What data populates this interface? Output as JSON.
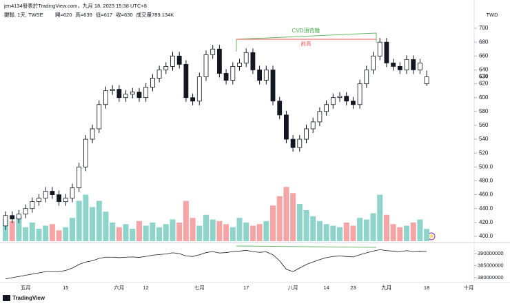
{
  "chart_data": {
    "type": "candlestick",
    "subtitle": "jen4134發表於TradingView.com，九月 18, 2023 15:38 UTC+8",
    "title": "鍵聯, 1天, TWSE",
    "ohlc_labels": [
      "開=620",
      "高=639",
      "低=617",
      "收=630",
      "成交量789.134K"
    ],
    "currency": "TWD",
    "brand": "TradingView",
    "annotations": [
      "CVD頂背離",
      "前高"
    ],
    "categories": [
      null,
      null,
      null,
      "五月",
      null,
      null,
      null,
      null,
      null,
      "15",
      null,
      null,
      null,
      null,
      null,
      null,
      null,
      "六月",
      null,
      null,
      null,
      "12",
      null,
      null,
      null,
      null,
      null,
      null,
      null,
      "七月",
      null,
      null,
      null,
      null,
      null,
      null,
      "17",
      null,
      null,
      null,
      null,
      null,
      null,
      "八月",
      null,
      null,
      null,
      null,
      "14",
      null,
      null,
      null,
      "23",
      null,
      null,
      null,
      null,
      "九月",
      null,
      null,
      null,
      null,
      null,
      "18"
    ],
    "future_label": "十月",
    "open": [
      415,
      430,
      425,
      432,
      440,
      450,
      455,
      465,
      460,
      450,
      455,
      470,
      500,
      540,
      555,
      590,
      610,
      612,
      600,
      605,
      608,
      600,
      615,
      628,
      640,
      645,
      660,
      648,
      600,
      595,
      630,
      662,
      670,
      635,
      625,
      645,
      650,
      665,
      640,
      625,
      640,
      595,
      575,
      540,
      528,
      540,
      555,
      565,
      580,
      590,
      600,
      602,
      595,
      590,
      620,
      640,
      660,
      680,
      650,
      645,
      640,
      655,
      640,
      620
    ],
    "high": [
      436,
      436,
      438,
      446,
      456,
      461,
      471,
      471,
      466,
      461,
      476,
      506,
      546,
      561,
      596,
      616,
      618,
      618,
      611,
      614,
      614,
      621,
      634,
      646,
      651,
      666,
      666,
      654,
      606,
      636,
      668,
      676,
      676,
      641,
      651,
      656,
      671,
      671,
      646,
      646,
      646,
      601,
      581,
      546,
      546,
      561,
      571,
      586,
      596,
      606,
      608,
      608,
      601,
      626,
      646,
      666,
      686,
      686,
      656,
      651,
      661,
      661,
      656,
      639
    ],
    "low": [
      409,
      419,
      419,
      426,
      434,
      444,
      449,
      454,
      444,
      444,
      449,
      464,
      494,
      534,
      549,
      584,
      604,
      594,
      594,
      599,
      594,
      594,
      609,
      622,
      634,
      639,
      642,
      594,
      589,
      589,
      624,
      656,
      629,
      619,
      619,
      639,
      644,
      634,
      619,
      619,
      589,
      569,
      534,
      522,
      522,
      534,
      549,
      559,
      574,
      584,
      594,
      589,
      584,
      584,
      614,
      634,
      654,
      644,
      639,
      634,
      634,
      634,
      634,
      617
    ],
    "close": [
      430,
      425,
      432,
      440,
      450,
      455,
      465,
      460,
      450,
      455,
      470,
      500,
      540,
      555,
      590,
      610,
      612,
      600,
      605,
      608,
      600,
      615,
      628,
      640,
      645,
      660,
      648,
      600,
      595,
      630,
      662,
      670,
      635,
      625,
      645,
      650,
      665,
      640,
      625,
      640,
      595,
      575,
      540,
      528,
      540,
      555,
      565,
      580,
      590,
      600,
      602,
      595,
      590,
      620,
      640,
      660,
      680,
      650,
      645,
      640,
      655,
      640,
      650,
      630
    ],
    "volume": [
      1400,
      1300,
      1600,
      900,
      1200,
      800,
      1000,
      1100,
      700,
      900,
      1500,
      2600,
      3000,
      2200,
      2600,
      1900,
      1200,
      900,
      1100,
      800,
      1300,
      1000,
      1200,
      900,
      1100,
      1400,
      1200,
      2600,
      1500,
      1000,
      1700,
      1400,
      1300,
      1100,
      900,
      1500,
      1200,
      1000,
      1100,
      1300,
      2300,
      2900,
      3500,
      3100,
      2400,
      2000,
      1600,
      1300,
      1100,
      1000,
      900,
      1200,
      1000,
      1500,
      1400,
      1800,
      3000,
      1700,
      1100,
      900,
      1000,
      1200,
      1400,
      789.134
    ],
    "volume_ylim": [
      0,
      4000
    ],
    "up_color": "#ffffff",
    "down_color": "#131722",
    "candle_border": "#131722",
    "volume_up_color": "#8fd4ca",
    "volume_down_color": "#f5a5a5",
    "ylim": [
      393,
      708
    ],
    "yticks": [
      700,
      680,
      660,
      640,
      620,
      600,
      580,
      560,
      540,
      520,
      {
        "value": 500,
        "label": "500.0"
      },
      {
        "value": 480,
        "label": "480.0"
      },
      {
        "value": 460,
        "label": "460.0"
      },
      {
        "value": 440,
        "label": "440.0"
      },
      {
        "value": 420,
        "label": "420.0"
      },
      {
        "value": 400,
        "label": "400.0"
      }
    ],
    "indicator": {
      "color": "#131722",
      "values": [
        379500000,
        380000000,
        380500000,
        381000000,
        381500000,
        382000000,
        382500000,
        382500000,
        382500000,
        383000000,
        384000000,
        385500000,
        386500000,
        387000000,
        388000000,
        388500000,
        388500000,
        388300000,
        388500000,
        388600000,
        388400000,
        388800000,
        389300000,
        389600000,
        389800000,
        390300000,
        390000000,
        389000000,
        388800000,
        389500000,
        390400000,
        390800000,
        390200000,
        390400000,
        390800000,
        391000000,
        391300000,
        390800000,
        390500000,
        390700000,
        389500000,
        387000000,
        383500000,
        382500000,
        384000000,
        385500000,
        386500000,
        387500000,
        388300000,
        388800000,
        389000000,
        388800000,
        388600000,
        389500000,
        390300000,
        391000000,
        391600000,
        391200000,
        391000000,
        390800000,
        391200000,
        390800000,
        391000000,
        390800000
      ],
      "ylim": [
        378000000,
        393700000
      ],
      "yticks": [
        390000000,
        385000000,
        380000000
      ]
    }
  }
}
